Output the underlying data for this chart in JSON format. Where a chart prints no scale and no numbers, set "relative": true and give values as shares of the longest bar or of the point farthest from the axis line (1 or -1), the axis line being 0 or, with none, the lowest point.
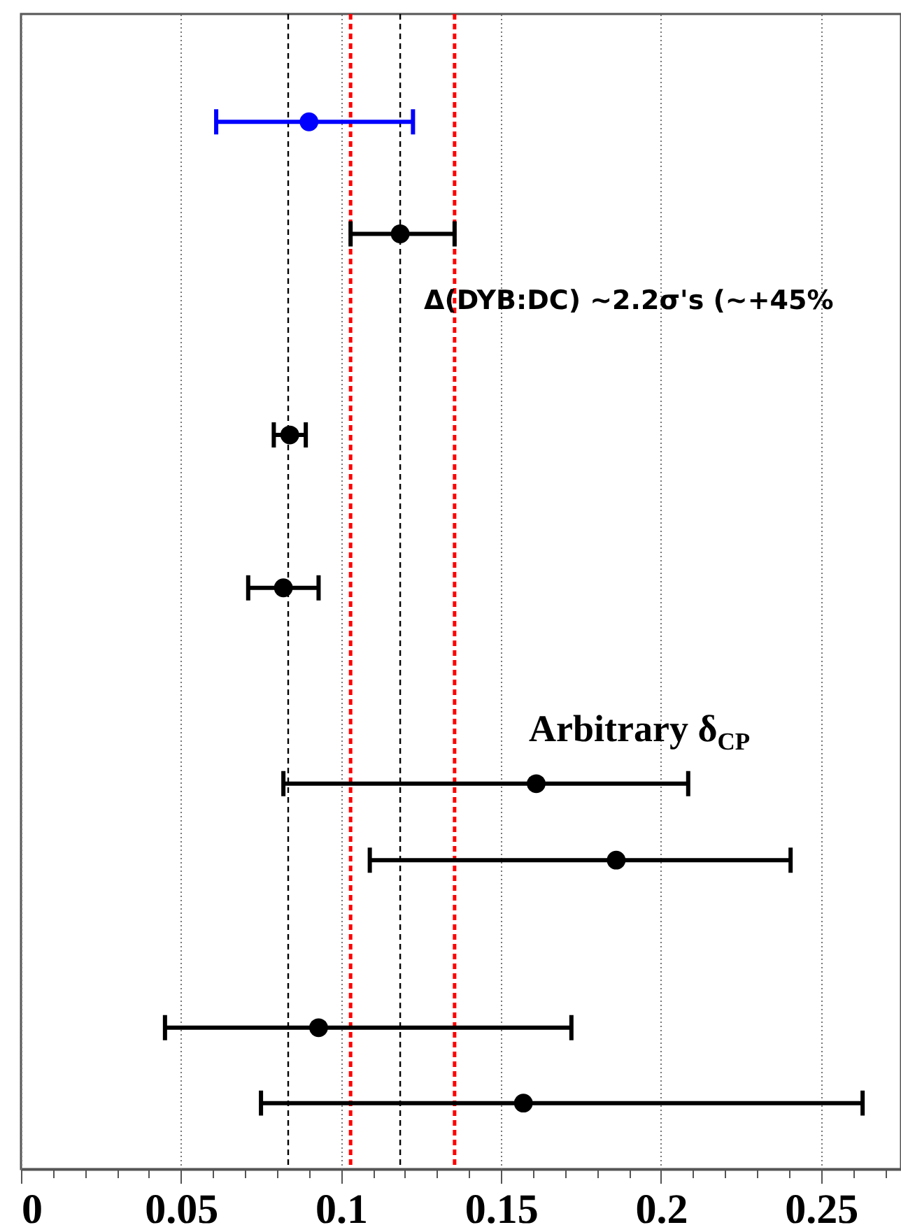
{
  "chart_data": {
    "type": "scatter",
    "relative": true,
    "x": [
      0.09,
      0.1185,
      0.084,
      0.082,
      0.161,
      0.186,
      0.093,
      0.157
    ],
    "values": [
      1,
      0.893,
      0.701,
      0.555,
      0.368,
      0.295,
      0.135,
      0.063
    ],
    "xerrors": [
      [
        0.061,
        0.1225
      ],
      [
        0.103,
        0.1355
      ],
      [
        0.079,
        0.089
      ],
      [
        0.071,
        0.093
      ],
      [
        0.082,
        0.2085
      ],
      [
        0.109,
        0.2405
      ],
      [
        0.045,
        0.172
      ],
      [
        0.075,
        0.263
      ]
    ],
    "colors": [
      "#0000ff",
      "#000000",
      "#000000",
      "#000000",
      "#000000",
      "#000000",
      "#000000",
      "#000000"
    ],
    "xlim": [
      0,
      0.275
    ],
    "xticks": [
      0,
      {
        "value": 0.01,
        "label": null
      },
      {
        "value": 0.02,
        "label": null
      },
      {
        "value": 0.03,
        "label": null
      },
      {
        "value": 0.04,
        "label": null
      },
      0.05,
      {
        "value": 0.06,
        "label": null
      },
      {
        "value": 0.07,
        "label": null
      },
      {
        "value": 0.08,
        "label": null
      },
      {
        "value": 0.09,
        "label": null
      },
      0.1,
      {
        "value": 0.11,
        "label": null
      },
      {
        "value": 0.12,
        "label": null
      },
      {
        "value": 0.13,
        "label": null
      },
      {
        "value": 0.14,
        "label": null
      },
      0.15,
      {
        "value": 0.16,
        "label": null
      },
      {
        "value": 0.17,
        "label": null
      },
      {
        "value": 0.18,
        "label": null
      },
      {
        "value": 0.19,
        "label": null
      },
      0.2,
      {
        "value": 0.21,
        "label": null
      },
      {
        "value": 0.22,
        "label": null
      },
      {
        "value": 0.23,
        "label": null
      },
      {
        "value": 0.24,
        "label": null
      },
      0.25,
      {
        "value": 0.26,
        "label": null
      },
      {
        "value": 0.27,
        "label": null
      }
    ],
    "grid": "x",
    "marker": "circle",
    "tick_labels": "x",
    "ref_lines": [
      {
        "axis": "x",
        "value": 0.0835,
        "color": "#000000",
        "line_style": "dashed"
      },
      {
        "axis": "x",
        "value": 0.1185,
        "color": "#000000",
        "line_style": "dashed"
      },
      {
        "axis": "x",
        "value": 0.103,
        "color": "#ff0000",
        "line_style": "dashed"
      },
      {
        "axis": "x",
        "value": 0.1355,
        "color": "#ff0000",
        "line_style": "dashed"
      }
    ],
    "annotations": [
      "Δ(DYB:DC) ~2.2σ's (~+45%",
      "Arbitrary δ$_{CP}$"
    ]
  }
}
